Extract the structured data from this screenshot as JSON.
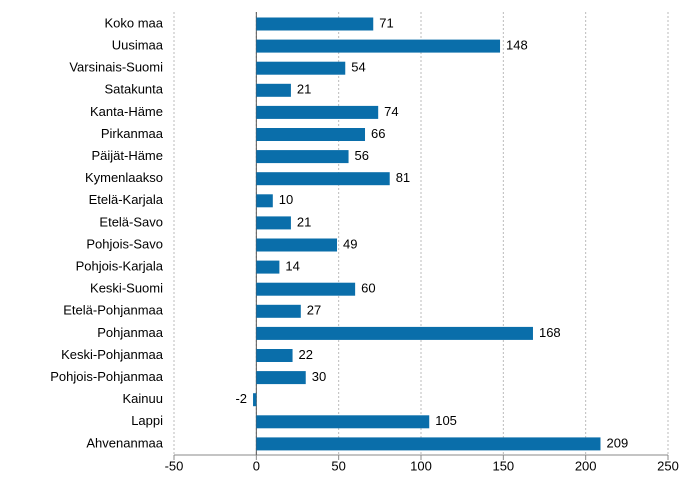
{
  "chart_data": {
    "type": "bar",
    "orientation": "horizontal",
    "categories": [
      "Koko maa",
      "Uusimaa",
      "Varsinais-Suomi",
      "Satakunta",
      "Kanta-Häme",
      "Pirkanmaa",
      "Päijät-Häme",
      "Kymenlaakso",
      "Etelä-Karjala",
      "Etelä-Savo",
      "Pohjois-Savo",
      "Pohjois-Karjala",
      "Keski-Suomi",
      "Etelä-Pohjanmaa",
      "Pohjanmaa",
      "Keski-Pohjanmaa",
      "Pohjois-Pohjanmaa",
      "Kainuu",
      "Lappi",
      "Ahvenanmaa"
    ],
    "values": [
      71,
      148,
      54,
      21,
      74,
      66,
      56,
      81,
      10,
      21,
      49,
      14,
      60,
      27,
      168,
      22,
      30,
      -2,
      105,
      209
    ],
    "color": "#0a6eaa",
    "xlim": [
      -50,
      250
    ],
    "xticks": [
      -50,
      0,
      50,
      100,
      150,
      200,
      250
    ],
    "grid": true
  }
}
